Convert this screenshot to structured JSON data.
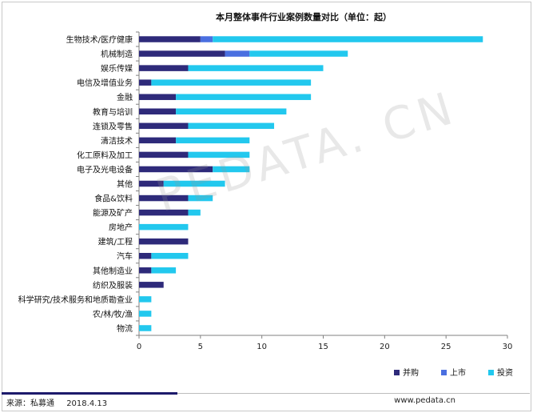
{
  "chart_data": {
    "type": "bar",
    "orientation": "horizontal",
    "stacked": true,
    "title": "本月整体事件行业案例数量对比（单位：起）",
    "categories": [
      "生物技术/医疗健康",
      "机械制造",
      "娱乐传媒",
      "电信及增值业务",
      "金融",
      "教育与培训",
      "连锁及零售",
      "清洁技术",
      "化工原料及加工",
      "电子及光电设备",
      "其他",
      "食品&饮料",
      "能源及矿产",
      "房地产",
      "建筑/工程",
      "汽车",
      "其他制造业",
      "纺织及服装",
      "科学研究/技术服务和地质勘查业",
      "农/林/牧/渔",
      "物流"
    ],
    "series": [
      {
        "name": "并购",
        "color": "#2e2a7a",
        "values": [
          5,
          7,
          4,
          1,
          3,
          3,
          4,
          3,
          4,
          6,
          2,
          4,
          4,
          0,
          4,
          1,
          1,
          2,
          0,
          0,
          0
        ]
      },
      {
        "name": "上市",
        "color": "#4a6fe0",
        "values": [
          1,
          2,
          0,
          0,
          0,
          0,
          0,
          0,
          0,
          0,
          0,
          0,
          0,
          0,
          0,
          0,
          0,
          0,
          0,
          0,
          0
        ]
      },
      {
        "name": "投资",
        "color": "#22c8ee",
        "values": [
          22,
          8,
          11,
          13,
          11,
          9,
          7,
          6,
          5,
          3,
          5,
          2,
          1,
          4,
          0,
          3,
          2,
          0,
          1,
          1,
          1
        ]
      }
    ],
    "xlim": [
      0,
      30
    ],
    "xticks": [
      0,
      5,
      10,
      15,
      20,
      25,
      30
    ],
    "legend_position": "bottom-right"
  },
  "footer": {
    "source": "来源：私募通",
    "date": "2018.4.13",
    "website": "www.pedata.cn"
  },
  "watermark": "PEDATA. CN"
}
